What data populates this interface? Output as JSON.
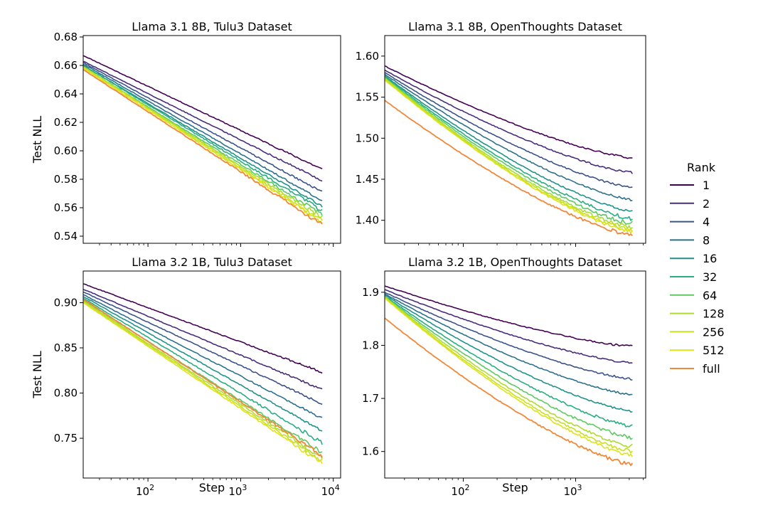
{
  "chart_data": {
    "type": "line",
    "x_scale": "log",
    "legend": {
      "title": "Rank",
      "placement": "right",
      "entries": [
        {
          "name": "1",
          "color": "#440154"
        },
        {
          "name": "2",
          "color": "#472d7b"
        },
        {
          "name": "4",
          "color": "#3b528b"
        },
        {
          "name": "8",
          "color": "#2c728e"
        },
        {
          "name": "16",
          "color": "#21918c"
        },
        {
          "name": "32",
          "color": "#28ae80"
        },
        {
          "name": "64",
          "color": "#5ec962"
        },
        {
          "name": "128",
          "color": "#addc30"
        },
        {
          "name": "256",
          "color": "#c8e020"
        },
        {
          "name": "512",
          "color": "#dde318"
        },
        {
          "name": "full",
          "color": "#f0883a"
        }
      ]
    },
    "panels": [
      {
        "title": "Llama 3.1 8B, Tulu3 Dataset",
        "ylabel": "Test NLL",
        "xlabel": "",
        "xlim": [
          20,
          12000
        ],
        "ylim": [
          0.535,
          0.681
        ],
        "xticks": [
          {
            "value": 100,
            "base": "10",
            "exp": "2"
          },
          {
            "value": 1000,
            "base": "10",
            "exp": "3"
          },
          {
            "value": 10000,
            "base": "10",
            "exp": "4"
          }
        ],
        "show_xtick_labels": false,
        "yticks": [
          "0.54",
          "0.56",
          "0.58",
          "0.60",
          "0.62",
          "0.64",
          "0.66",
          "0.68"
        ],
        "x_start": 20,
        "x_end": 7600,
        "series": [
          {
            "name": "1",
            "start": 0.667,
            "end": 0.587
          },
          {
            "name": "2",
            "start": 0.663,
            "end": 0.579
          },
          {
            "name": "4",
            "start": 0.662,
            "end": 0.571
          },
          {
            "name": "8",
            "start": 0.661,
            "end": 0.565
          },
          {
            "name": "16",
            "start": 0.66,
            "end": 0.561
          },
          {
            "name": "32",
            "start": 0.66,
            "end": 0.558
          },
          {
            "name": "64",
            "start": 0.659,
            "end": 0.555
          },
          {
            "name": "128",
            "start": 0.659,
            "end": 0.553
          },
          {
            "name": "256",
            "start": 0.659,
            "end": 0.551
          },
          {
            "name": "512",
            "start": 0.658,
            "end": 0.55
          },
          {
            "name": "full",
            "start": 0.657,
            "end": 0.548
          }
        ]
      },
      {
        "title": "Llama 3.1 8B, OpenThoughts Dataset",
        "ylabel": "",
        "xlabel": "",
        "xlim": [
          20,
          4200
        ],
        "ylim": [
          1.372,
          1.625
        ],
        "xticks": [
          {
            "value": 100,
            "base": "10",
            "exp": "2"
          },
          {
            "value": 1000,
            "base": "10",
            "exp": "3"
          }
        ],
        "show_xtick_labels": false,
        "yticks": [
          "1.40",
          "1.45",
          "1.50",
          "1.55",
          "1.60"
        ],
        "x_start": 20,
        "x_end": 3200,
        "series": [
          {
            "name": "1",
            "start": 1.588,
            "end": 1.476
          },
          {
            "name": "2",
            "start": 1.583,
            "end": 1.458
          },
          {
            "name": "4",
            "start": 1.58,
            "end": 1.44
          },
          {
            "name": "8",
            "start": 1.578,
            "end": 1.425
          },
          {
            "name": "16",
            "start": 1.576,
            "end": 1.411
          },
          {
            "name": "32",
            "start": 1.575,
            "end": 1.402
          },
          {
            "name": "64",
            "start": 1.574,
            "end": 1.396
          },
          {
            "name": "128",
            "start": 1.573,
            "end": 1.391
          },
          {
            "name": "256",
            "start": 1.572,
            "end": 1.388
          },
          {
            "name": "512",
            "start": 1.571,
            "end": 1.386
          },
          {
            "name": "full",
            "start": 1.546,
            "end": 1.382
          }
        ]
      },
      {
        "title": "Llama 3.2 1B, Tulu3 Dataset",
        "ylabel": "Test NLL",
        "xlabel": "Step",
        "xlim": [
          20,
          12000
        ],
        "ylim": [
          0.706,
          0.935
        ],
        "xticks": [
          {
            "value": 100,
            "base": "10",
            "exp": "2"
          },
          {
            "value": 1000,
            "base": "10",
            "exp": "3"
          },
          {
            "value": 10000,
            "base": "10",
            "exp": "4"
          }
        ],
        "show_xtick_labels": true,
        "yticks": [
          "0.75",
          "0.80",
          "0.85",
          "0.90"
        ],
        "x_start": 20,
        "x_end": 7600,
        "series": [
          {
            "name": "1",
            "start": 0.921,
            "end": 0.823
          },
          {
            "name": "2",
            "start": 0.915,
            "end": 0.804
          },
          {
            "name": "4",
            "start": 0.912,
            "end": 0.788
          },
          {
            "name": "8",
            "start": 0.909,
            "end": 0.772
          },
          {
            "name": "16",
            "start": 0.907,
            "end": 0.758
          },
          {
            "name": "32",
            "start": 0.905,
            "end": 0.745
          },
          {
            "name": "64",
            "start": 0.903,
            "end": 0.734
          },
          {
            "name": "128",
            "start": 0.902,
            "end": 0.728
          },
          {
            "name": "256",
            "start": 0.901,
            "end": 0.725
          },
          {
            "name": "512",
            "start": 0.9,
            "end": 0.722
          },
          {
            "name": "full",
            "start": 0.904,
            "end": 0.731
          }
        ]
      },
      {
        "title": "Llama 3.2 1B, OpenThoughts Dataset",
        "ylabel": "",
        "xlabel": "Step",
        "xlim": [
          20,
          4200
        ],
        "ylim": [
          1.55,
          1.94
        ],
        "xticks": [
          {
            "value": 100,
            "base": "10",
            "exp": "2"
          },
          {
            "value": 1000,
            "base": "10",
            "exp": "3"
          }
        ],
        "show_xtick_labels": true,
        "yticks": [
          "1.6",
          "1.7",
          "1.8",
          "1.9"
        ],
        "x_start": 20,
        "x_end": 3200,
        "series": [
          {
            "name": "1",
            "start": 1.912,
            "end": 1.798
          },
          {
            "name": "2",
            "start": 1.905,
            "end": 1.767
          },
          {
            "name": "4",
            "start": 1.9,
            "end": 1.737
          },
          {
            "name": "8",
            "start": 1.897,
            "end": 1.707
          },
          {
            "name": "16",
            "start": 1.895,
            "end": 1.676
          },
          {
            "name": "32",
            "start": 1.893,
            "end": 1.648
          },
          {
            "name": "64",
            "start": 1.892,
            "end": 1.626
          },
          {
            "name": "128",
            "start": 1.891,
            "end": 1.61
          },
          {
            "name": "256",
            "start": 1.89,
            "end": 1.6
          },
          {
            "name": "512",
            "start": 1.889,
            "end": 1.593
          },
          {
            "name": "full",
            "start": 1.851,
            "end": 1.576
          }
        ]
      }
    ]
  }
}
